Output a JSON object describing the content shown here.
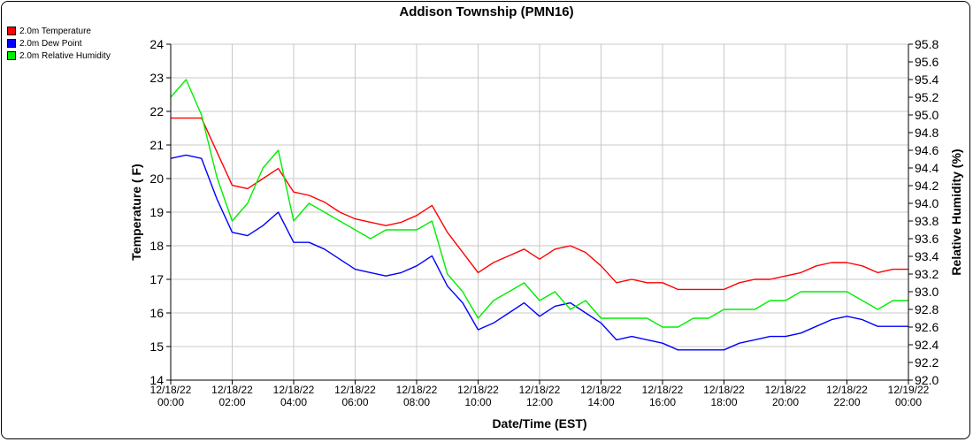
{
  "chart_data": {
    "type": "line",
    "title": "Addison Township (PMN16)",
    "xlabel": "Date/Time (EST)",
    "ylabel": "Temperature ( F)",
    "y2label": "Relative Humidity (%)",
    "ylim": [
      14,
      24
    ],
    "y2lim": [
      92.0,
      95.8
    ],
    "grid": true,
    "legend_position": "top-left",
    "x_ticks": [
      [
        "12/18/22",
        "00:00"
      ],
      [
        "12/18/22",
        "02:00"
      ],
      [
        "12/18/22",
        "04:00"
      ],
      [
        "12/18/22",
        "06:00"
      ],
      [
        "12/18/22",
        "08:00"
      ],
      [
        "12/18/22",
        "10:00"
      ],
      [
        "12/18/22",
        "12:00"
      ],
      [
        "12/18/22",
        "14:00"
      ],
      [
        "12/18/22",
        "16:00"
      ],
      [
        "12/18/22",
        "18:00"
      ],
      [
        "12/18/22",
        "20:00"
      ],
      [
        "12/18/22",
        "22:00"
      ],
      [
        "12/19/22",
        "00:00"
      ]
    ],
    "y_ticks": [
      "14",
      "15",
      "16",
      "17",
      "18",
      "19",
      "20",
      "21",
      "22",
      "23",
      "24"
    ],
    "y2_ticks": [
      "92.0",
      "92.2",
      "92.4",
      "92.6",
      "92.8",
      "93.0",
      "93.2",
      "93.4",
      "93.6",
      "93.8",
      "94.0",
      "94.2",
      "94.4",
      "94.6",
      "94.8",
      "95.0",
      "95.2",
      "95.4",
      "95.6",
      "95.8"
    ],
    "x": [
      "12/18/22 00:00",
      "12/18/22 00:30",
      "12/18/22 01:00",
      "12/18/22 01:30",
      "12/18/22 02:00",
      "12/18/22 02:30",
      "12/18/22 03:00",
      "12/18/22 03:30",
      "12/18/22 04:00",
      "12/18/22 04:30",
      "12/18/22 05:00",
      "12/18/22 05:30",
      "12/18/22 06:00",
      "12/18/22 06:30",
      "12/18/22 07:00",
      "12/18/22 07:30",
      "12/18/22 08:00",
      "12/18/22 08:30",
      "12/18/22 09:00",
      "12/18/22 09:30",
      "12/18/22 10:00",
      "12/18/22 10:30",
      "12/18/22 11:00",
      "12/18/22 11:30",
      "12/18/22 12:00",
      "12/18/22 12:30",
      "12/18/22 13:00",
      "12/18/22 13:30",
      "12/18/22 14:00",
      "12/18/22 14:30",
      "12/18/22 15:00",
      "12/18/22 15:30",
      "12/18/22 16:00",
      "12/18/22 16:30",
      "12/18/22 17:00",
      "12/18/22 17:30",
      "12/18/22 18:00",
      "12/18/22 18:30",
      "12/18/22 19:00",
      "12/18/22 19:30",
      "12/18/22 20:00",
      "12/18/22 20:30",
      "12/18/22 21:00",
      "12/18/22 21:30",
      "12/18/22 22:00",
      "12/18/22 22:30",
      "12/18/22 23:00",
      "12/18/22 23:30",
      "12/19/22 00:00"
    ],
    "series": [
      {
        "name": "2.0m Temperature",
        "color": "#ff0000",
        "axis": "left",
        "values": [
          21.8,
          21.8,
          21.8,
          20.8,
          19.8,
          19.7,
          20.0,
          20.3,
          19.6,
          19.5,
          19.3,
          19.0,
          18.8,
          18.7,
          18.6,
          18.7,
          18.9,
          19.2,
          18.4,
          17.8,
          17.2,
          17.5,
          17.7,
          17.9,
          17.6,
          17.9,
          18.0,
          17.8,
          17.4,
          16.9,
          17.0,
          16.9,
          16.9,
          16.7,
          16.7,
          16.7,
          16.7,
          16.9,
          17.0,
          17.0,
          17.1,
          17.2,
          17.4,
          17.5,
          17.5,
          17.4,
          17.2,
          17.3,
          17.3
        ]
      },
      {
        "name": "2.0m Dew Point",
        "color": "#0000ff",
        "axis": "left",
        "values": [
          20.6,
          20.7,
          20.6,
          19.4,
          18.4,
          18.3,
          18.6,
          19.0,
          18.1,
          18.1,
          17.9,
          17.6,
          17.3,
          17.2,
          17.1,
          17.2,
          17.4,
          17.7,
          16.8,
          16.3,
          15.5,
          15.7,
          16.0,
          16.3,
          15.9,
          16.2,
          16.3,
          16.0,
          15.7,
          15.2,
          15.3,
          15.2,
          15.1,
          14.9,
          14.9,
          14.9,
          14.9,
          15.1,
          15.2,
          15.3,
          15.3,
          15.4,
          15.6,
          15.8,
          15.9,
          15.8,
          15.6,
          15.6,
          15.6
        ]
      },
      {
        "name": "2.0m Relative Humidity",
        "color": "#00ee00",
        "axis": "right",
        "values": [
          95.2,
          95.4,
          95.0,
          94.3,
          93.8,
          94.0,
          94.4,
          94.6,
          93.8,
          94.0,
          93.9,
          93.8,
          93.7,
          93.6,
          93.7,
          93.7,
          93.7,
          93.8,
          93.2,
          93.0,
          92.7,
          92.9,
          93.0,
          93.1,
          92.9,
          93.0,
          92.8,
          92.9,
          92.7,
          92.7,
          92.7,
          92.7,
          92.6,
          92.6,
          92.7,
          92.7,
          92.8,
          92.8,
          92.8,
          92.9,
          92.9,
          93.0,
          93.0,
          93.0,
          93.0,
          92.9,
          92.8,
          92.9,
          92.9
        ]
      }
    ]
  }
}
